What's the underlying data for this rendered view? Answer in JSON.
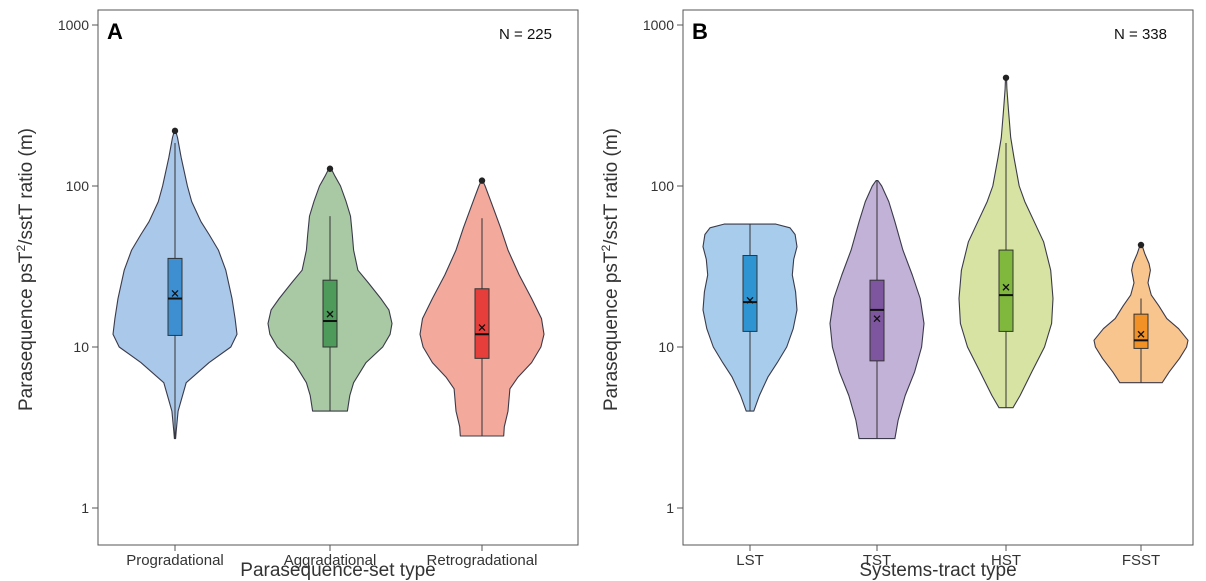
{
  "chart_data": [
    {
      "type": "violin",
      "panel_label": "A",
      "annotation": "N = 225",
      "xlabel": "Parasequence-set type",
      "ylabel_prefix": "Parasequence psT",
      "ylabel_sup": "2",
      "ylabel_suffix": "/sstT ratio (m)",
      "y_scale": "log",
      "ylim": [
        0.85,
        1000
      ],
      "y_ticks": [
        1,
        10,
        100,
        1000
      ],
      "y_tick_labels": [
        "1",
        "10",
        "100",
        "1000"
      ],
      "categories": [
        "Progradational",
        "Aggradational",
        "Retrogradational"
      ],
      "series": [
        {
          "color": "#a9c8ea",
          "box_color": "#3d8fd1",
          "min": 2.7,
          "max": 220,
          "q1": 11.8,
          "median": 20,
          "q3": 35.5,
          "mean": 21.5,
          "whisker_low": 2.7,
          "whisker_high": 185,
          "outliers": [
            220
          ],
          "density": [
            [
              2.7,
              0.01
            ],
            [
              3,
              0.02
            ],
            [
              4,
              0.05
            ],
            [
              6,
              0.18
            ],
            [
              8,
              0.55
            ],
            [
              10,
              0.9
            ],
            [
              12,
              1.0
            ],
            [
              15,
              0.97
            ],
            [
              20,
              0.92
            ],
            [
              30,
              0.82
            ],
            [
              40,
              0.7
            ],
            [
              50,
              0.55
            ],
            [
              60,
              0.42
            ],
            [
              80,
              0.27
            ],
            [
              100,
              0.2
            ],
            [
              150,
              0.1
            ],
            [
              200,
              0.04
            ],
            [
              220,
              0.01
            ]
          ]
        },
        {
          "color": "#a9c9a4",
          "box_color": "#4e9a5a",
          "min": 4,
          "max": 128,
          "q1": 10,
          "median": 14.5,
          "q3": 26,
          "mean": 16,
          "whisker_low": 4,
          "whisker_high": 65,
          "outliers": [
            128
          ],
          "density": [
            [
              4,
              0.28
            ],
            [
              5,
              0.32
            ],
            [
              6,
              0.38
            ],
            [
              8,
              0.58
            ],
            [
              10,
              0.85
            ],
            [
              12,
              0.97
            ],
            [
              14,
              1.0
            ],
            [
              17,
              0.95
            ],
            [
              20,
              0.82
            ],
            [
              25,
              0.62
            ],
            [
              30,
              0.45
            ],
            [
              40,
              0.38
            ],
            [
              50,
              0.36
            ],
            [
              65,
              0.33
            ],
            [
              80,
              0.26
            ],
            [
              100,
              0.17
            ],
            [
              115,
              0.08
            ],
            [
              128,
              0.02
            ]
          ]
        },
        {
          "color": "#f3a99c",
          "box_color": "#e53e3b",
          "min": 2.8,
          "max": 108,
          "q1": 8.5,
          "median": 12,
          "q3": 23,
          "mean": 13.2,
          "whisker_low": 2.8,
          "whisker_high": 63,
          "outliers": [
            108
          ],
          "density": [
            [
              2.8,
              0.35
            ],
            [
              3.2,
              0.36
            ],
            [
              4,
              0.42
            ],
            [
              5.5,
              0.45
            ],
            [
              6.5,
              0.58
            ],
            [
              8,
              0.8
            ],
            [
              10,
              0.95
            ],
            [
              12,
              1.0
            ],
            [
              15,
              0.96
            ],
            [
              20,
              0.8
            ],
            [
              28,
              0.6
            ],
            [
              40,
              0.42
            ],
            [
              55,
              0.3
            ],
            [
              70,
              0.2
            ],
            [
              85,
              0.12
            ],
            [
              100,
              0.05
            ],
            [
              108,
              0.01
            ]
          ]
        }
      ]
    },
    {
      "type": "violin",
      "panel_label": "B",
      "annotation": "N = 338",
      "xlabel": "Systems-tract type",
      "ylabel_prefix": "Parasequence psT",
      "ylabel_sup": "2",
      "ylabel_suffix": "/sstT ratio (m)",
      "y_scale": "log",
      "ylim": [
        0.85,
        1000
      ],
      "y_ticks": [
        1,
        10,
        100,
        1000
      ],
      "y_tick_labels": [
        "1",
        "10",
        "100",
        "1000"
      ],
      "categories": [
        "LST",
        "TST",
        "HST",
        "FSST"
      ],
      "series": [
        {
          "color": "#a8cdec",
          "box_color": "#2f94d2",
          "min": 4,
          "max": 58,
          "q1": 12.5,
          "median": 19,
          "q3": 37,
          "mean": 19.5,
          "whisker_low": 4,
          "whisker_high": 58,
          "outliers": [],
          "density": [
            [
              4,
              0.08
            ],
            [
              5,
              0.2
            ],
            [
              6.5,
              0.38
            ],
            [
              8,
              0.58
            ],
            [
              10,
              0.78
            ],
            [
              13,
              0.92
            ],
            [
              17,
              1.0
            ],
            [
              22,
              0.97
            ],
            [
              28,
              0.9
            ],
            [
              35,
              0.93
            ],
            [
              42,
              1.0
            ],
            [
              50,
              0.96
            ],
            [
              55,
              0.85
            ],
            [
              58,
              0.55
            ]
          ]
        },
        {
          "color": "#c3b2d8",
          "box_color": "#7e569f",
          "min": 2.7,
          "max": 108,
          "q1": 8.2,
          "median": 17,
          "q3": 26,
          "mean": 15,
          "whisker_low": 2.7,
          "whisker_high": 108,
          "outliers": [],
          "density": [
            [
              2.7,
              0.38
            ],
            [
              3.5,
              0.45
            ],
            [
              5,
              0.6
            ],
            [
              7,
              0.8
            ],
            [
              10,
              0.95
            ],
            [
              14,
              1.0
            ],
            [
              20,
              0.92
            ],
            [
              28,
              0.75
            ],
            [
              40,
              0.55
            ],
            [
              60,
              0.38
            ],
            [
              80,
              0.25
            ],
            [
              100,
              0.1
            ],
            [
              108,
              0.02
            ]
          ]
        },
        {
          "color": "#d7e3a3",
          "box_color": "#80b83d",
          "min": 4.2,
          "max": 470,
          "q1": 12.5,
          "median": 21,
          "q3": 40,
          "mean": 23.5,
          "whisker_low": 4.2,
          "whisker_high": 185,
          "outliers": [
            470
          ],
          "density": [
            [
              4.2,
              0.15
            ],
            [
              5,
              0.3
            ],
            [
              7,
              0.55
            ],
            [
              10,
              0.82
            ],
            [
              14,
              0.97
            ],
            [
              20,
              1.0
            ],
            [
              30,
              0.95
            ],
            [
              45,
              0.8
            ],
            [
              60,
              0.6
            ],
            [
              80,
              0.4
            ],
            [
              100,
              0.28
            ],
            [
              150,
              0.17
            ],
            [
              200,
              0.1
            ],
            [
              300,
              0.05
            ],
            [
              400,
              0.02
            ],
            [
              470,
              0.01
            ]
          ]
        },
        {
          "color": "#f9c58f",
          "box_color": "#f29126",
          "min": 6,
          "max": 43,
          "q1": 9.8,
          "median": 11,
          "q3": 16,
          "mean": 12,
          "whisker_low": 6,
          "whisker_high": 20,
          "outliers": [
            43
          ],
          "density": [
            [
              6,
              0.45
            ],
            [
              7,
              0.6
            ],
            [
              8.5,
              0.82
            ],
            [
              10,
              0.97
            ],
            [
              11,
              1.0
            ],
            [
              13,
              0.8
            ],
            [
              15,
              0.55
            ],
            [
              18,
              0.38
            ],
            [
              21,
              0.22
            ],
            [
              25,
              0.15
            ],
            [
              30,
              0.2
            ],
            [
              33,
              0.17
            ],
            [
              38,
              0.08
            ],
            [
              43,
              0.02
            ]
          ]
        }
      ]
    }
  ]
}
